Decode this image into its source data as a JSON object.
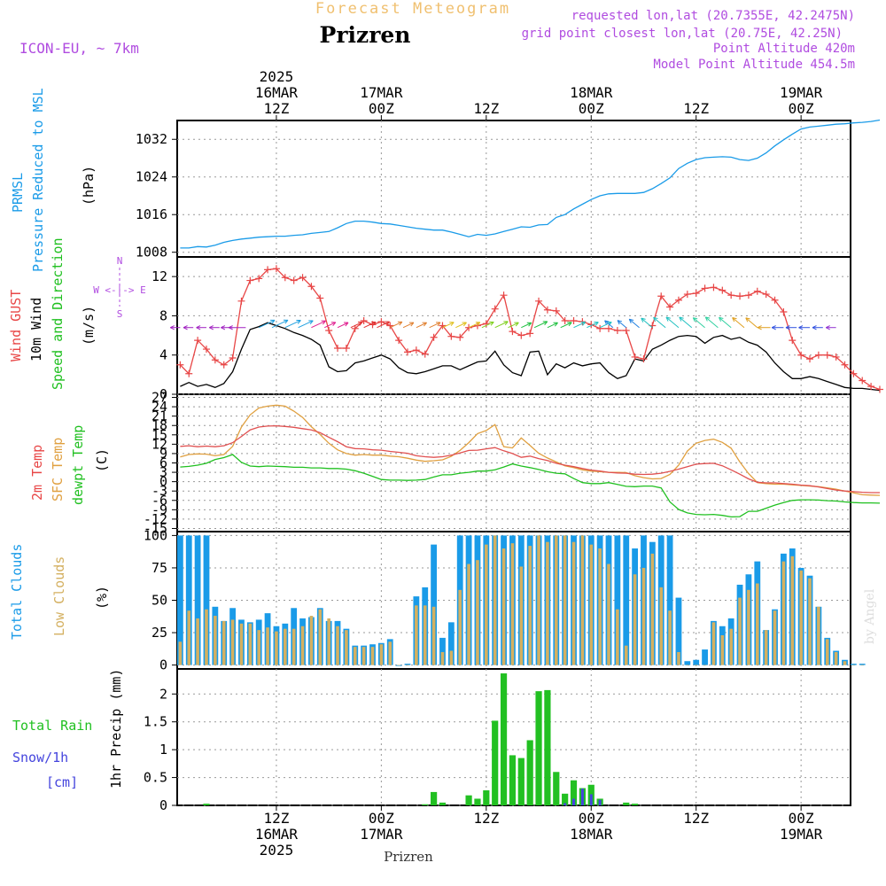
{
  "header": {
    "product": "Forecast Meteogram",
    "city": "Prizren",
    "model": "ICON-EU, ~ 7km",
    "requested": "requested lon,lat (20.7355E, 42.2475N)",
    "grid": "grid point closest lon,lat (20.75E, 42.25N)",
    "point_alt": "Point Altitude 420m",
    "model_alt": "Model Point Altitude 454.5m",
    "watermark": "by Angel",
    "footer_city": "Prizren"
  },
  "time_axis": {
    "top_labels": [
      {
        "hour": 12,
        "lines": [
          "2025",
          "16MAR",
          "12Z"
        ]
      },
      {
        "hour": 24,
        "lines": [
          "17MAR",
          "00Z"
        ]
      },
      {
        "hour": 36,
        "lines": [
          "12Z"
        ]
      },
      {
        "hour": 48,
        "lines": [
          "18MAR",
          "00Z"
        ]
      },
      {
        "hour": 60,
        "lines": [
          "12Z"
        ]
      },
      {
        "hour": 72,
        "lines": [
          "19MAR",
          "00Z"
        ]
      }
    ],
    "bottom_labels": [
      {
        "hour": 12,
        "lines": [
          "12Z",
          "16MAR",
          "2025"
        ]
      },
      {
        "hour": 24,
        "lines": [
          "00Z",
          "17MAR"
        ]
      },
      {
        "hour": 36,
        "lines": [
          "12Z"
        ]
      },
      {
        "hour": 48,
        "lines": [
          "00Z",
          "18MAR"
        ]
      },
      {
        "hour": 60,
        "lines": [
          "12Z"
        ]
      },
      {
        "hour": 72,
        "lines": [
          "00Z",
          "19MAR"
        ]
      }
    ]
  },
  "panel_labels": {
    "pressure": [
      "PRMSL",
      "Pressure Reduced to MSL",
      "(hPa)"
    ],
    "wind": [
      "Wind GUST",
      "10m Wind",
      "Speed and Direction",
      "(m/s)"
    ],
    "compass": [
      "N",
      "W <-|-> E",
      "S"
    ],
    "temp": [
      "2m Temp",
      "SFC Temp",
      "dewpt Temp",
      "(C)"
    ],
    "clouds": [
      "Total Clouds",
      "Low Clouds",
      "(%)"
    ],
    "precip": [
      "Total Rain",
      "Snow/1h",
      "[cm]",
      "1hr Precip (mm)"
    ]
  },
  "colors": {
    "pressure": "#1a9be8",
    "gust": "#e84646",
    "wind": "#000000",
    "t2m": "#e05050",
    "sfc": "#e0a040",
    "dew": "#20c020",
    "total_cloud": "#1a9be8",
    "low_cloud": "#d4b060",
    "rain": "#22c022",
    "snow": "#4444dd",
    "label_purple": "#b04ce0",
    "title_orange": "#f0c070"
  },
  "chart_data": [
    {
      "type": "line",
      "title": "PRMSL Pressure Reduced to MSL",
      "ylabel": "(hPa)",
      "ylim": [
        1007,
        1036
      ],
      "yticks": [
        1008,
        1016,
        1024,
        1032
      ],
      "x_hours_start": 1,
      "x_hours_end": 77,
      "series": [
        {
          "name": "PRMSL",
          "values": [
            1008.9,
            1008.9,
            1009.2,
            1009.1,
            1009.5,
            1010.1,
            1010.5,
            1010.8,
            1011.0,
            1011.2,
            1011.3,
            1011.4,
            1011.4,
            1011.6,
            1011.7,
            1012.0,
            1012.2,
            1012.4,
            1013.2,
            1014.1,
            1014.6,
            1014.6,
            1014.4,
            1014.1,
            1014.0,
            1013.7,
            1013.4,
            1013.1,
            1012.9,
            1012.7,
            1012.7,
            1012.3,
            1011.8,
            1011.3,
            1011.8,
            1011.6,
            1011.9,
            1012.4,
            1012.9,
            1013.4,
            1013.3,
            1013.8,
            1013.9,
            1015.4,
            1016.0,
            1017.2,
            1018.2,
            1019.2,
            1020.0,
            1020.4,
            1020.5,
            1020.5,
            1020.5,
            1020.7,
            1021.5,
            1022.6,
            1023.8,
            1025.8,
            1026.9,
            1027.7,
            1028.1,
            1028.2,
            1028.3,
            1028.2,
            1027.7,
            1027.5,
            1028.0,
            1029.1,
            1030.6,
            1031.9,
            1033.1,
            1034.2,
            1034.6,
            1034.8,
            1035.0,
            1035.2,
            1035.3,
            1035.5,
            1035.6,
            1035.8,
            1036.1
          ]
        }
      ]
    },
    {
      "type": "line",
      "title": "Wind GUST / 10m Wind Speed and Direction",
      "ylabel": "(m/s)",
      "ylim": [
        0,
        14
      ],
      "yticks": [
        0,
        4,
        8,
        12
      ],
      "x_hours_start": 1,
      "x_hours_end": 77,
      "series": [
        {
          "name": "Wind GUST",
          "values": [
            3.0,
            2.1,
            5.5,
            4.6,
            3.5,
            3.0,
            3.7,
            9.5,
            11.6,
            11.8,
            12.7,
            12.8,
            11.9,
            11.6,
            11.9,
            11.0,
            9.8,
            6.5,
            4.7,
            4.7,
            6.7,
            7.5,
            7.1,
            7.4,
            7.0,
            5.5,
            4.3,
            4.5,
            4.1,
            5.8,
            7.0,
            5.9,
            5.8,
            6.8,
            7.0,
            7.2,
            8.7,
            10.1,
            6.4,
            6.0,
            6.2,
            9.5,
            8.6,
            8.5,
            7.5,
            7.5,
            7.4,
            7.1,
            6.7,
            6.7,
            6.5,
            6.5,
            3.8,
            3.6,
            7.0,
            10.0,
            8.9,
            9.6,
            10.2,
            10.3,
            10.8,
            10.9,
            10.6,
            10.1,
            10.0,
            10.1,
            10.5,
            10.2,
            9.6,
            8.4,
            5.5,
            4.0,
            3.6,
            4.0,
            4.0,
            3.8,
            3.0,
            2.1,
            1.4,
            0.8,
            0.5
          ]
        },
        {
          "name": "10m Wind",
          "values": [
            0.8,
            1.2,
            0.8,
            1.0,
            0.7,
            1.1,
            2.3,
            4.6,
            6.6,
            6.9,
            7.3,
            7.0,
            6.7,
            6.3,
            6.0,
            5.6,
            5.0,
            2.8,
            2.3,
            2.4,
            3.2,
            3.4,
            3.7,
            4.0,
            3.6,
            2.7,
            2.2,
            2.1,
            2.3,
            2.6,
            2.9,
            2.9,
            2.5,
            2.9,
            3.3,
            3.4,
            4.4,
            3.0,
            2.2,
            1.9,
            4.3,
            4.4,
            2.0,
            3.1,
            2.7,
            3.2,
            2.9,
            3.1,
            3.2,
            2.2,
            1.6,
            1.9,
            3.6,
            3.4,
            4.6,
            5.0,
            5.5,
            5.9,
            6.0,
            5.9,
            5.2,
            5.8,
            6.0,
            5.6,
            5.8,
            5.3,
            5.0,
            4.3,
            3.2,
            2.3,
            1.6,
            1.6,
            1.8,
            1.6,
            1.3,
            1.0,
            0.7,
            0.6,
            0.6,
            0.5,
            0.4
          ]
        }
      ]
    },
    {
      "type": "line",
      "title": "2m Temp / SFC Temp / dewpt Temp",
      "ylabel": "(C)",
      "ylim": [
        -16,
        28
      ],
      "yticks": [
        -15,
        -12,
        -9,
        -6,
        -3,
        0,
        3,
        6,
        9,
        12,
        15,
        18,
        21,
        24,
        27
      ],
      "x_hours_start": 1,
      "x_hours_end": 77,
      "series": [
        {
          "name": "2m Temp",
          "values": [
            11.3,
            11.5,
            11.2,
            11.4,
            11.2,
            11.5,
            12.5,
            14.5,
            16.6,
            17.5,
            17.8,
            17.9,
            17.7,
            17.4,
            17.0,
            16.6,
            15.7,
            14.2,
            12.8,
            11.2,
            10.6,
            10.5,
            10.2,
            10.1,
            9.7,
            9.4,
            9.1,
            8.3,
            8.0,
            7.8,
            8.0,
            8.5,
            9.2,
            10.0,
            10.1,
            10.5,
            10.9,
            9.9,
            9.0,
            7.8,
            8.2,
            7.4,
            6.8,
            5.9,
            5.3,
            4.8,
            4.2,
            3.7,
            3.4,
            3.0,
            2.8,
            2.7,
            2.4,
            2.3,
            2.4,
            2.7,
            3.3,
            4.0,
            4.8,
            5.6,
            5.8,
            5.9,
            5.1,
            3.8,
            2.4,
            0.9,
            -0.2,
            -0.4,
            -0.4,
            -0.6,
            -0.8,
            -1.1,
            -1.3,
            -1.7,
            -2.2,
            -2.7,
            -3.0,
            -3.2,
            -3.4,
            -3.5,
            -3.5
          ]
        },
        {
          "name": "SFC Temp",
          "values": [
            7.9,
            8.7,
            8.9,
            8.8,
            8.3,
            8.7,
            11.3,
            17.5,
            21.4,
            23.6,
            24.2,
            24.5,
            24.2,
            22.6,
            20.6,
            17.6,
            15.1,
            12.3,
            10.2,
            9.0,
            8.5,
            8.7,
            8.5,
            8.5,
            8.2,
            8.0,
            7.5,
            6.9,
            6.5,
            6.7,
            7.0,
            8.1,
            10.0,
            12.5,
            15.4,
            16.4,
            18.3,
            11.2,
            10.8,
            14.0,
            11.6,
            9.1,
            7.6,
            6.3,
            5.1,
            4.5,
            3.8,
            3.4,
            3.2,
            3.0,
            3.0,
            2.9,
            1.9,
            1.3,
            0.9,
            1.0,
            2.3,
            5.3,
            9.8,
            12.3,
            13.2,
            13.6,
            12.6,
            10.7,
            6.3,
            2.6,
            -0.3,
            -0.6,
            -0.8,
            -0.8,
            -1.0,
            -1.2,
            -1.4,
            -1.6,
            -2.0,
            -2.4,
            -3.0,
            -3.6,
            -4.2,
            -4.3,
            -4.4
          ]
        },
        {
          "name": "dewpt Temp",
          "values": [
            4.7,
            4.9,
            5.3,
            5.9,
            7.1,
            7.7,
            8.7,
            6.2,
            5.0,
            4.8,
            5.0,
            4.9,
            4.8,
            4.6,
            4.6,
            4.4,
            4.4,
            4.2,
            4.2,
            4.0,
            3.5,
            2.7,
            1.7,
            0.7,
            0.5,
            0.5,
            0.4,
            0.5,
            0.7,
            1.5,
            2.2,
            2.2,
            2.7,
            3.0,
            3.4,
            3.4,
            3.8,
            4.7,
            5.7,
            5.0,
            4.5,
            3.9,
            3.2,
            2.7,
            2.5,
            1.0,
            -0.3,
            -0.6,
            -0.6,
            -0.3,
            -0.9,
            -1.5,
            -1.6,
            -1.4,
            -1.4,
            -2.0,
            -6.5,
            -8.9,
            -10.0,
            -10.5,
            -10.6,
            -10.5,
            -10.8,
            -11.3,
            -11.2,
            -9.5,
            -9.5,
            -8.5,
            -7.5,
            -6.7,
            -6.0,
            -5.8,
            -5.8,
            -5.9,
            -6.1,
            -6.2,
            -6.5,
            -6.7,
            -6.8,
            -6.8,
            -6.9
          ]
        }
      ]
    },
    {
      "type": "bar",
      "title": "Total Clouds / Low Clouds",
      "ylabel": "(%)",
      "ylim": [
        -3,
        103
      ],
      "yticks": [
        0,
        25,
        50,
        75,
        100
      ],
      "x_hours_start": 1,
      "x_hours_end": 77,
      "series": [
        {
          "name": "Total Clouds",
          "values": [
            100,
            100,
            100,
            100,
            45,
            34,
            44,
            35,
            33,
            35,
            40,
            30,
            32,
            44,
            36,
            37,
            44,
            34,
            34,
            28,
            15,
            15,
            16,
            17,
            20,
            0,
            1,
            53,
            60,
            93,
            21,
            33,
            100,
            100,
            100,
            100,
            100,
            100,
            100,
            100,
            100,
            100,
            100,
            100,
            100,
            100,
            100,
            100,
            100,
            100,
            100,
            100,
            90,
            100,
            95,
            100,
            100,
            52,
            3,
            4,
            12,
            34,
            30,
            36,
            62,
            70,
            80,
            27,
            43,
            86,
            90,
            75,
            69,
            45,
            21,
            11,
            4,
            1,
            1
          ]
        },
        {
          "name": "Low Clouds",
          "values": [
            18,
            42,
            36,
            43,
            38,
            34,
            35,
            32,
            32,
            27,
            29,
            26,
            28,
            28,
            30,
            38,
            43,
            36,
            30,
            27,
            14,
            14,
            14,
            16,
            18,
            0,
            0,
            46,
            46,
            45,
            10,
            11,
            58,
            78,
            81,
            93,
            100,
            90,
            94,
            76,
            92,
            100,
            95,
            100,
            100,
            95,
            100,
            93,
            90,
            78,
            43,
            15,
            70,
            75,
            86,
            60,
            42,
            10,
            0,
            0,
            0,
            33,
            23,
            28,
            52,
            58,
            63,
            27,
            42,
            80,
            84,
            73,
            67,
            45,
            20,
            10,
            3,
            0,
            0
          ]
        }
      ]
    },
    {
      "type": "bar",
      "title": "Total Rain / Snow 1h",
      "ylabel": "1hr Precip (mm)",
      "ylim": [
        0,
        2.45
      ],
      "yticks": [
        0,
        0.5,
        1,
        1.5,
        2
      ],
      "x_hours_start": 1,
      "x_hours_end": 77,
      "series": [
        {
          "name": "Total Rain",
          "values": [
            0,
            0,
            0,
            0.03,
            0,
            0,
            0,
            0,
            0,
            0,
            0,
            0,
            0,
            0,
            0,
            0,
            0,
            0,
            0,
            0,
            0,
            0,
            0,
            0,
            0,
            0,
            0,
            0,
            0.02,
            0.24,
            0.05,
            0,
            0,
            0.18,
            0.12,
            0.27,
            1.52,
            2.37,
            0.9,
            0.85,
            1.17,
            2.05,
            2.07,
            0.6,
            0.21,
            0.45,
            0.31,
            0.37,
            0.12,
            0,
            0,
            0.05,
            0.03,
            0,
            0,
            0,
            0,
            0,
            0,
            0,
            0,
            0,
            0,
            0,
            0,
            0,
            0,
            0,
            0,
            0,
            0,
            0,
            0,
            0,
            0,
            0,
            0
          ]
        },
        {
          "name": "Snow/1h",
          "values": [
            0,
            0,
            0,
            0,
            0,
            0,
            0,
            0,
            0,
            0,
            0,
            0,
            0,
            0,
            0,
            0,
            0,
            0,
            0,
            0,
            0,
            0,
            0,
            0,
            0,
            0,
            0,
            0,
            0,
            0,
            0,
            0,
            0,
            0,
            0,
            0,
            0,
            0,
            0,
            0,
            0,
            0,
            0,
            0,
            0.04,
            0.12,
            0.3,
            0.2,
            0.1,
            0,
            0,
            0,
            0,
            0,
            0,
            0,
            0,
            0,
            0,
            0,
            0,
            0,
            0,
            0,
            0,
            0,
            0,
            0,
            0,
            0,
            0,
            0,
            0,
            0,
            0,
            0,
            0
          ]
        }
      ]
    }
  ]
}
